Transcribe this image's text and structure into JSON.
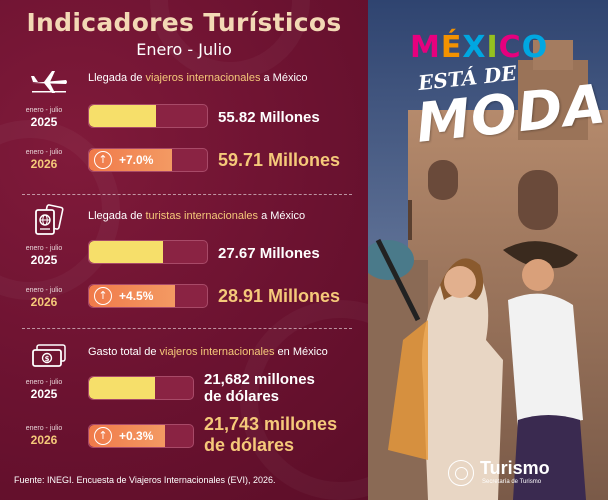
{
  "header": {
    "title": "Indicadores Turísticos",
    "subtitle": "Enero - Julio"
  },
  "period_label": "enero - julio",
  "sections": [
    {
      "icon": "airplane-icon",
      "text_pre": "Llegada de ",
      "text_hl": "viajeros internacionales",
      "text_post": " a México",
      "y2025": {
        "year": "2025",
        "value": "55.82 Millones",
        "fill": 0.57
      },
      "y2026": {
        "year": "2026",
        "value": "59.71 Millones",
        "change": "+7.0%",
        "fill": 0.7
      }
    },
    {
      "icon": "passport-icon",
      "text_pre": "Llegada de ",
      "text_hl": "turistas internacionales",
      "text_post": " a México",
      "y2025": {
        "year": "2025",
        "value": "27.67 Millones",
        "fill": 0.63
      },
      "y2026": {
        "year": "2026",
        "value": "28.91 Millones",
        "change": "+4.5%",
        "fill": 0.73
      }
    },
    {
      "icon": "money-icon",
      "text_pre": "Gasto total de ",
      "text_hl": "viajeros internacionales",
      "text_post": " en México",
      "y2025": {
        "year": "2025",
        "value_line1": "21,682 millones",
        "value_line2": "de dólares",
        "fill": 0.63
      },
      "y2026": {
        "year": "2026",
        "value_line1": "21,743 millones",
        "value_line2": "de dólares",
        "change": "+0.3%",
        "fill": 0.73
      }
    }
  ],
  "footer": "Fuente: INEGI. Encuesta de Viajeros Internacionales (EVI), 2026.",
  "promo": {
    "brand_letters": [
      "M",
      "É",
      "X",
      "I",
      "C",
      "O"
    ],
    "brand_colors": [
      "#e6007e",
      "#f39200",
      "#00a7e1",
      "#95c11f",
      "#e6007e",
      "#00a7e1"
    ],
    "tagline_top": "ESTÁ DE",
    "tagline_big": "MODA",
    "logo_name": "Turismo",
    "logo_sub": "Secretaría de Turismo"
  },
  "colors": {
    "panel_bg": "#6e1430",
    "accent_gold": "#f5c97a",
    "bar_2025": "#f6df6a",
    "bar_2026": "#f07a4a"
  }
}
